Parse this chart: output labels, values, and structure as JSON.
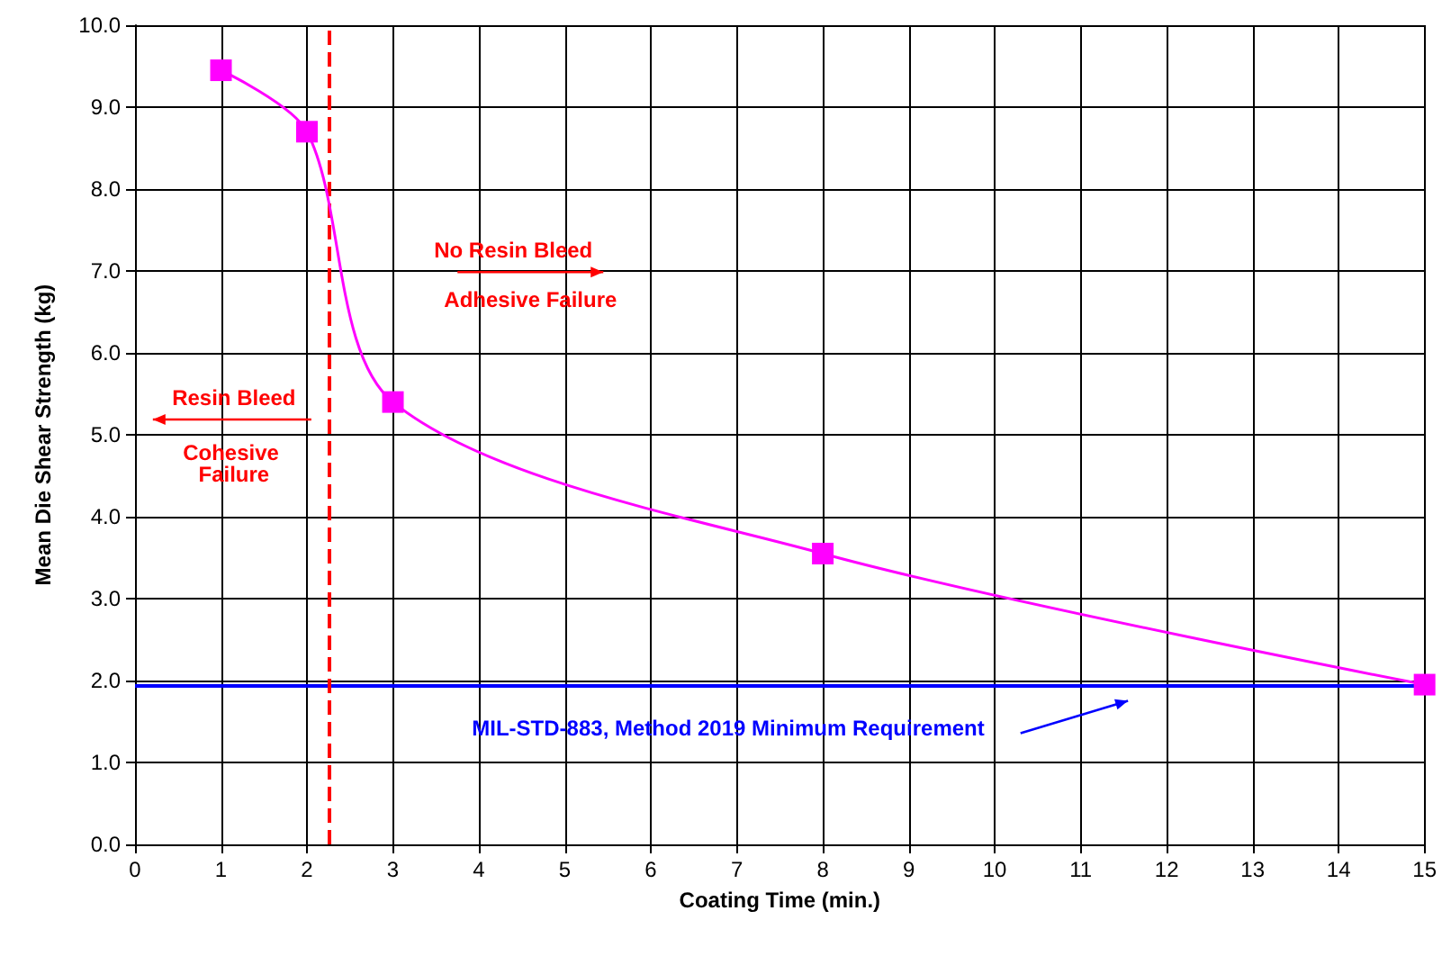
{
  "chart_data": {
    "type": "line",
    "xlabel": "Coating Time (min.)",
    "ylabel": "Mean Die Shear Strength (kg)",
    "x": [
      1,
      2,
      3,
      8,
      15
    ],
    "series": [
      {
        "color": "#ff00ff",
        "values": [
          9.45,
          8.7,
          5.4,
          3.55,
          1.95
        ]
      }
    ],
    "xlim": [
      0,
      15
    ],
    "xticks": [
      0,
      1,
      2,
      3,
      4,
      5,
      6,
      7,
      8,
      9,
      10,
      11,
      12,
      13,
      14,
      15
    ],
    "ylim": [
      0,
      10
    ],
    "yticks": [
      {
        "value": 0,
        "label": "0.0"
      },
      {
        "value": 1,
        "label": "1.0"
      },
      {
        "value": 2,
        "label": "2.0"
      },
      {
        "value": 3,
        "label": "3.0"
      },
      {
        "value": 4,
        "label": "4.0"
      },
      {
        "value": 5,
        "label": "5.0"
      },
      {
        "value": 6,
        "label": "6.0"
      },
      {
        "value": 7,
        "label": "7.0"
      },
      {
        "value": 8,
        "label": "8.0"
      },
      {
        "value": 9,
        "label": "9.0"
      },
      {
        "value": 10,
        "label": "10.0"
      }
    ],
    "ref_lines": [
      {
        "axis": "y",
        "value": 1.95,
        "label": "MIL-STD-883, Method 2019 Minimum Requirement",
        "color": "#0000ff",
        "line_style": "solid"
      },
      {
        "axis": "x",
        "value": 2.25,
        "color": "#ff0000",
        "line_style": "dashed"
      }
    ],
    "annotations": [
      "No Resin Bleed",
      "Adhesive Failure",
      "Resin Bleed",
      "Cohesive Failure"
    ],
    "grid": true,
    "marker": "square",
    "line_style": "solid"
  }
}
